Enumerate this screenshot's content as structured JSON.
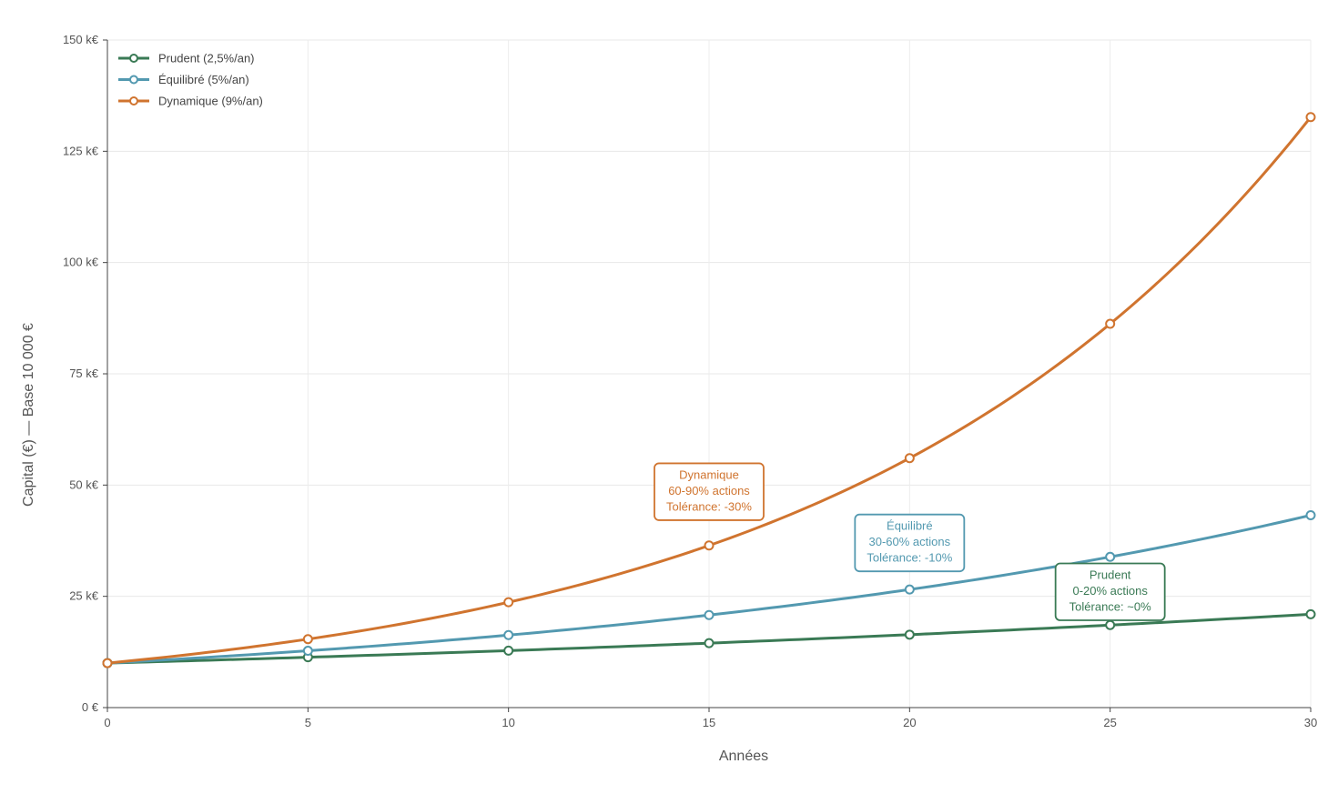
{
  "chart_data": {
    "type": "line",
    "title": "",
    "xlabel": "Années",
    "ylabel": "Capital (€) — Base 10 000 €",
    "xlim": [
      0,
      30
    ],
    "ylim": [
      0,
      150000
    ],
    "x_ticks": [
      {
        "value": 0,
        "label": "0"
      },
      {
        "value": 5,
        "label": "5"
      },
      {
        "value": 10,
        "label": "10"
      },
      {
        "value": 15,
        "label": "15"
      },
      {
        "value": 20,
        "label": "20"
      },
      {
        "value": 25,
        "label": "25"
      },
      {
        "value": 30,
        "label": "30"
      }
    ],
    "y_ticks": [
      {
        "value": 0,
        "label": "0 €"
      },
      {
        "value": 25000,
        "label": "25 k€"
      },
      {
        "value": 50000,
        "label": "50 k€"
      },
      {
        "value": 75000,
        "label": "75 k€"
      },
      {
        "value": 100000,
        "label": "100 k€"
      },
      {
        "value": 125000,
        "label": "125 k€"
      },
      {
        "value": 150000,
        "label": "150 k€"
      }
    ],
    "grid": true,
    "legend_position": "top-left",
    "marker_x": [
      0,
      5,
      10,
      15,
      20,
      25,
      30
    ],
    "series": [
      {
        "name": "Prudent (2,5%/an)",
        "color": "#3a7a55",
        "rate": 0.025,
        "base": 10000,
        "annotation": {
          "lines": [
            "Prudent",
            "0-20% actions",
            "Tolérance: ~0%"
          ],
          "x": 25,
          "y": 26000
        }
      },
      {
        "name": "Équilibré (5%/an)",
        "color": "#5399b0",
        "rate": 0.05,
        "base": 10000,
        "annotation": {
          "lines": [
            "Équilibré",
            "30-60% actions",
            "Tolérance: -10%"
          ],
          "x": 20,
          "y": 37000
        }
      },
      {
        "name": "Dynamique (9%/an)",
        "color": "#d0742f",
        "rate": 0.09,
        "base": 10000,
        "annotation": {
          "lines": [
            "Dynamique",
            "60-90% actions",
            "Tolérance: -30%"
          ],
          "x": 15,
          "y": 48500
        }
      }
    ]
  }
}
